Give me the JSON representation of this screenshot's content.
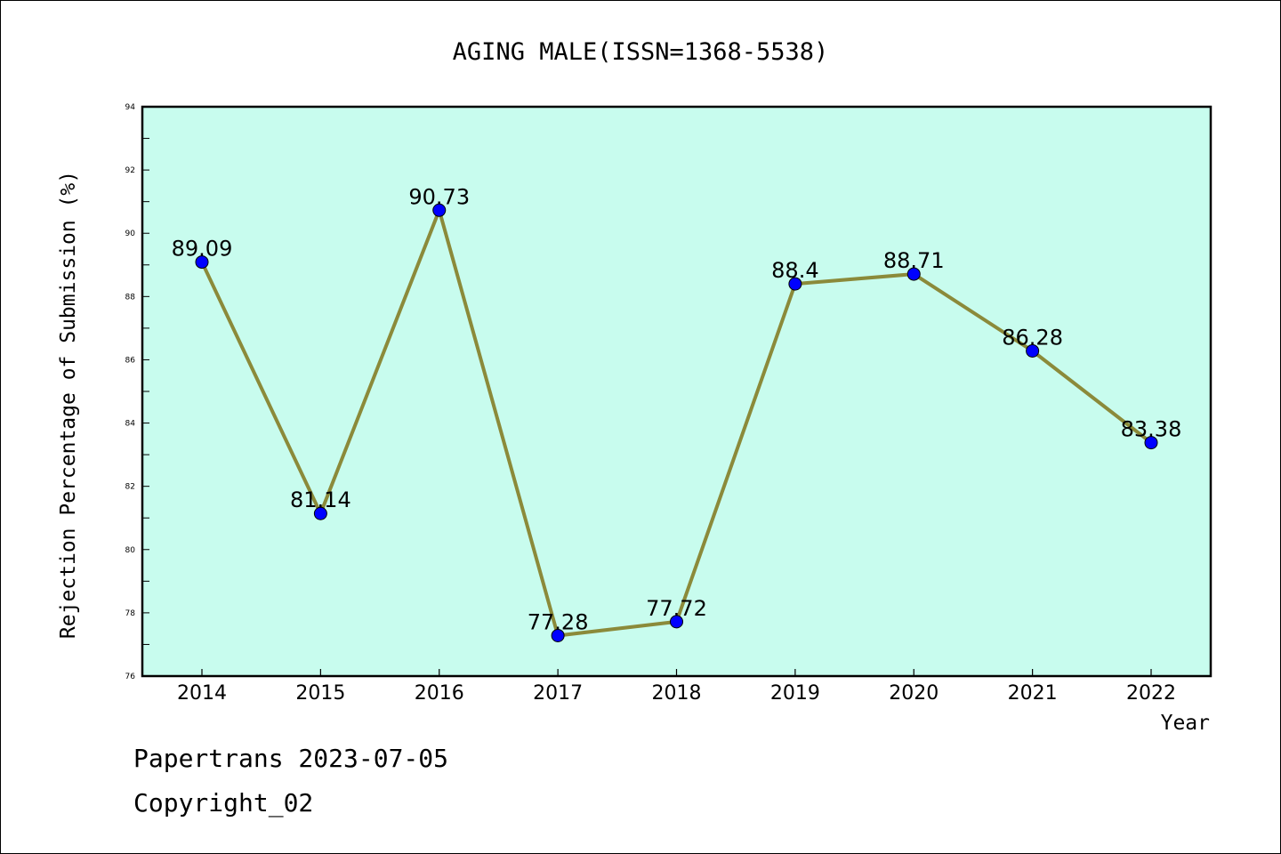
{
  "chart_data": {
    "type": "line",
    "title": "AGING MALE(ISSN=1368-5538)",
    "xlabel": "Year",
    "ylabel": "Rejection Percentage of Submission (%)",
    "categories": [
      "2014",
      "2015",
      "2016",
      "2017",
      "2018",
      "2019",
      "2020",
      "2021",
      "2022"
    ],
    "series": [
      {
        "values": [
          89.09,
          81.14,
          90.73,
          77.28,
          77.72,
          88.4,
          88.71,
          86.28,
          83.38
        ],
        "labels": [
          "89.09",
          "81.14",
          "90.73",
          "77.28",
          "77.72",
          "88.4",
          "88.71",
          "86.28",
          "83.38"
        ],
        "line_color": "#8b8a3a",
        "marker_color": "#0000ff"
      }
    ],
    "ylim": [
      76,
      94
    ],
    "yticks": [
      "76",
      "78",
      "80",
      "82",
      "84",
      "86",
      "88",
      "90",
      "92",
      "94"
    ],
    "plot_background": "#c8fcee",
    "grid": false,
    "legend": "none"
  },
  "footer": {
    "line1": "Papertrans 2023-07-05",
    "line2": "Copyright_02"
  }
}
